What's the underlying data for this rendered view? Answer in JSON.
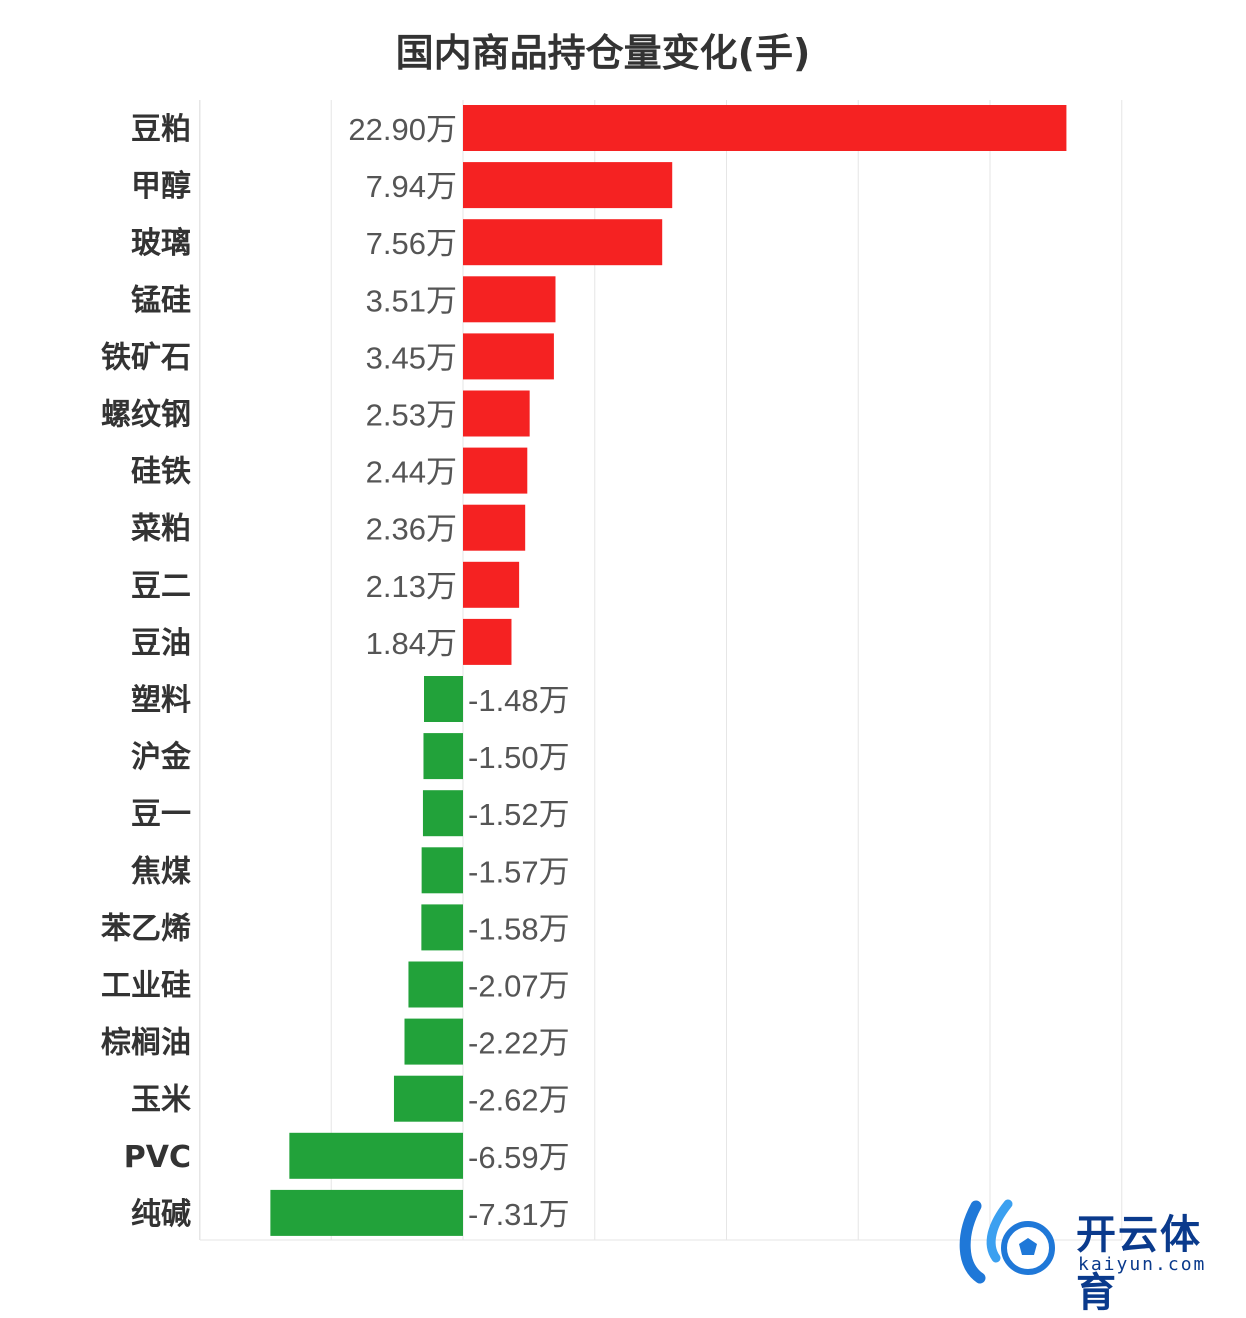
{
  "chart_data": {
    "type": "bar",
    "orientation": "horizontal",
    "title": "国内商品持仓量变化(手)",
    "categories": [
      "豆粕",
      "甲醇",
      "玻璃",
      "锰硅",
      "铁矿石",
      "螺纹钢",
      "硅铁",
      "菜粕",
      "豆二",
      "豆油",
      "塑料",
      "沪金",
      "豆一",
      "焦煤",
      "苯乙烯",
      "工业硅",
      "棕榈油",
      "玉米",
      "PVC",
      "纯碱"
    ],
    "values": [
      22.9,
      7.94,
      7.56,
      3.51,
      3.45,
      2.53,
      2.44,
      2.36,
      2.13,
      1.84,
      -1.48,
      -1.5,
      -1.52,
      -1.57,
      -1.58,
      -2.07,
      -2.22,
      -2.62,
      -6.59,
      -7.31
    ],
    "value_labels": [
      "22.90万",
      "7.94万",
      "7.56万",
      "3.51万",
      "3.45万",
      "2.53万",
      "2.44万",
      "2.36万",
      "2.13万",
      "1.84万",
      "-1.48万",
      "-1.50万",
      "-1.52万",
      "-1.57万",
      "-1.58万",
      "-2.07万",
      "-2.22万",
      "-2.62万",
      "-6.59万",
      "-7.31万"
    ],
    "unit": "万",
    "xlim": [
      -10,
      25
    ],
    "grid": true,
    "colors": {
      "positive": "#f52222",
      "negative": "#22a23a",
      "grid": "#e6e6e6",
      "category_text": "#333333",
      "label_text": "#555555"
    }
  },
  "watermark": {
    "brand": "开云体育",
    "url": "kaiyun.com"
  }
}
